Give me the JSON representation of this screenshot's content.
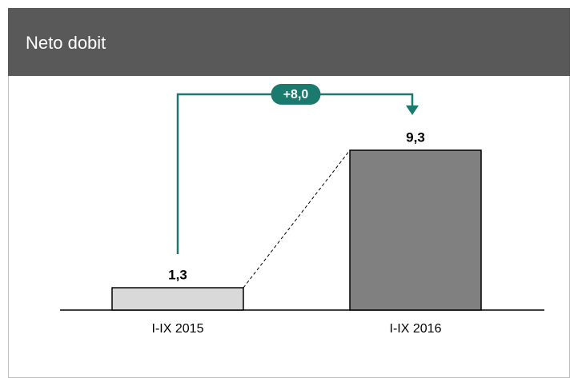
{
  "chart_data": {
    "type": "bar",
    "title": "Neto dobit",
    "categories": [
      "I-IX 2015",
      "I-IX 2016"
    ],
    "values": [
      1.3,
      9.3
    ],
    "value_labels": [
      "1,3",
      "9,3"
    ],
    "colors": [
      "#d9d9d9",
      "#808080"
    ],
    "annotation": "+8,0",
    "annotation_color": "#1a7a6e"
  }
}
